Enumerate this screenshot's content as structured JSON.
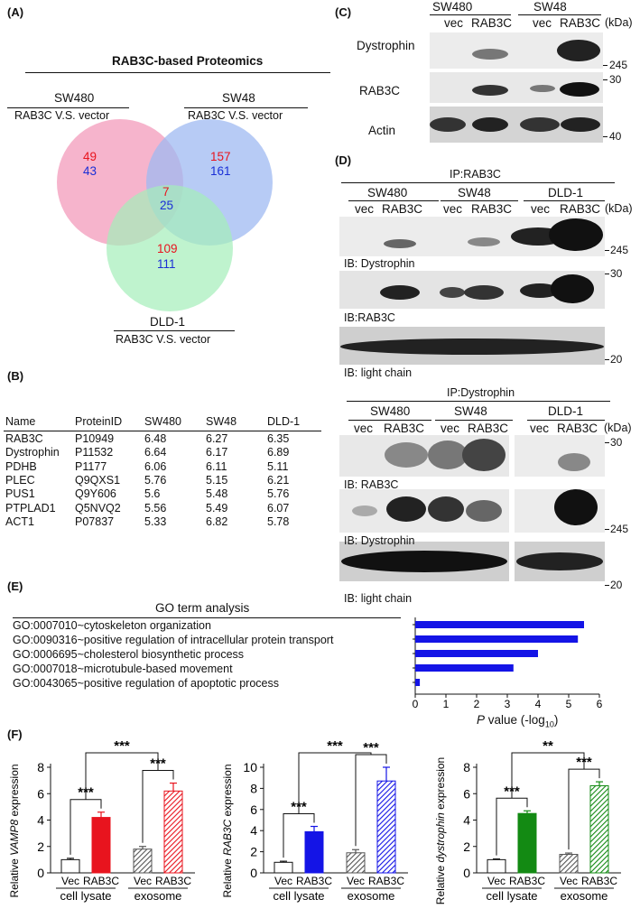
{
  "panelA": {
    "label": "(A)",
    "title": "RAB3C-based Proteomics",
    "sets": [
      {
        "name": "SW480",
        "sub": "RAB3C V.S. vector",
        "red": "49",
        "blue": "43"
      },
      {
        "name": "SW48",
        "sub": "RAB3C V.S. vector",
        "red": "157",
        "blue": "161"
      },
      {
        "name": "DLD-1",
        "sub": "RAB3C V.S. vector",
        "red": "109",
        "blue": "111"
      }
    ],
    "center": {
      "red": "7",
      "blue": "25"
    },
    "colors": {
      "sw480": "#f4a7c3",
      "sw48": "#9fb9f2",
      "dld1": "#a4eeb9",
      "red": "#e8141e",
      "blue": "#1a2fd6"
    }
  },
  "panelB": {
    "label": "(B)",
    "headers": [
      "Name",
      "ProteinID",
      "SW480",
      "SW48",
      "DLD-1"
    ],
    "rows": [
      [
        "RAB3C",
        "P10949",
        "6.48",
        "6.27",
        "6.35"
      ],
      [
        "Dystrophin",
        "P11532",
        "6.64",
        "6.17",
        "6.89"
      ],
      [
        "PDHB",
        "P1177",
        "6.06",
        "6.11",
        "5.11"
      ],
      [
        "PLEC",
        "Q9QXS1",
        "5.76",
        "5.15",
        "6.21"
      ],
      [
        "PUS1",
        "Q9Y606",
        "5.6",
        "5.48",
        "5.76"
      ],
      [
        "PTPLAD1",
        "Q5NVQ2",
        "5.56",
        "5.49",
        "6.07"
      ],
      [
        "ACT1",
        "P07837",
        "5.33",
        "6.82",
        "5.78"
      ]
    ]
  },
  "panelC": {
    "label": "(C)",
    "groups": [
      "SW480",
      "SW48"
    ],
    "lanes": [
      "vec",
      "RAB3C",
      "vec",
      "RAB3C"
    ],
    "kda": "(kDa)",
    "rows": [
      {
        "name": "Dystrophin",
        "marker": "245"
      },
      {
        "name": "RAB3C",
        "marker": "30"
      },
      {
        "name": "Actin",
        "marker": "40"
      }
    ]
  },
  "panelD": {
    "label": "(D)",
    "ip1": {
      "title": "IP:RAB3C",
      "groups": [
        "SW480",
        "SW48",
        "DLD-1"
      ],
      "lanes": [
        "vec",
        "RAB3C",
        "vec",
        "RAB3C",
        "vec",
        "RAB3C"
      ],
      "kda": "(kDa)",
      "blots": [
        {
          "caption": "IB: Dystrophin",
          "marker": "245"
        },
        {
          "caption": "IB:RAB3C",
          "marker": "30"
        },
        {
          "caption": "IB: light chain",
          "marker": "20"
        }
      ]
    },
    "ip2": {
      "title": "IP:Dystrophin",
      "groups": [
        "SW480",
        "SW48",
        "DLD-1"
      ],
      "lanes": [
        "vec",
        "RAB3C",
        "vec",
        "RAB3C",
        "vec",
        "RAB3C"
      ],
      "kda": "(kDa)",
      "blots": [
        {
          "caption": "IB: RAB3C",
          "marker": "30"
        },
        {
          "caption": "IB: Dystrophin",
          "marker": "245"
        },
        {
          "caption": "IB: light chain",
          "marker": "20"
        }
      ]
    }
  },
  "panelE": {
    "label": "(E)",
    "title": "GO term analysis",
    "xlabel_italic": "P",
    "xlabel_rest": " value (-log",
    "xlabel_sub": "10",
    "xlabel_end": ")"
  },
  "chart_data": [
    {
      "type": "bar",
      "title": "GO term analysis",
      "categories": [
        "GO:0007010~cytoskeleton organization",
        "GO:0090316~positive regulation of intracellular protein transport",
        "GO:0006695~cholesterol biosynthetic process",
        "GO:0007018~microtubule-based movement",
        "GO:0043065~positive regulation of apoptotic process"
      ],
      "values": [
        5.5,
        5.3,
        4.0,
        3.2,
        0.15
      ],
      "orientation": "horizontal",
      "xlabel": "P value (-log10)",
      "xlim": [
        0,
        6
      ],
      "xticks": [
        "0",
        "1",
        "2",
        "3",
        "4",
        "5",
        "6"
      ],
      "color": "#1414e6"
    },
    {
      "type": "bar",
      "ylabel_pre": "Relative ",
      "ylabel_gene": "VAMP8",
      "ylabel_post": " expression",
      "categories": [
        "Vec",
        "RAB3C",
        "Vec",
        "RAB3C"
      ],
      "groups": [
        "cell lysate",
        "exosome"
      ],
      "values": [
        1.0,
        4.2,
        1.8,
        6.2
      ],
      "errors": [
        0.1,
        0.4,
        0.2,
        0.6
      ],
      "ylim": [
        0,
        8
      ],
      "yticks": [
        "0",
        "2",
        "4",
        "6",
        "8"
      ],
      "fills": [
        "#ffffff",
        "#e8141e",
        "hatch-gray",
        "hatch-red"
      ],
      "significance": [
        {
          "label": "***",
          "pair": "Vec-RAB3C lysate"
        },
        {
          "label": "***",
          "pair": "Vec-RAB3C exosome"
        },
        {
          "label": "***",
          "pair": "lysate-exosome"
        }
      ]
    },
    {
      "type": "bar",
      "ylabel_pre": "Relative ",
      "ylabel_gene": "RAB3C",
      "ylabel_post": " expression",
      "categories": [
        "Vec",
        "RAB3C",
        "Vec",
        "RAB3C"
      ],
      "groups": [
        "cell lysate",
        "exosome"
      ],
      "values": [
        1.0,
        3.9,
        1.9,
        8.7
      ],
      "errors": [
        0.1,
        0.5,
        0.3,
        1.3
      ],
      "ylim": [
        0,
        10
      ],
      "yticks": [
        "0",
        "2",
        "4",
        "6",
        "8",
        "10"
      ],
      "fills": [
        "#ffffff",
        "#1414e6",
        "hatch-gray",
        "hatch-blue"
      ],
      "significance": [
        {
          "label": "***",
          "pair": "Vec-RAB3C lysate"
        },
        {
          "label": "***",
          "pair": "Vec-RAB3C exosome"
        },
        {
          "label": "***",
          "pair": "lysate-exosome"
        }
      ]
    },
    {
      "type": "bar",
      "ylabel_pre": "Relative ",
      "ylabel_gene": "dystrophin",
      "ylabel_post": " expression",
      "categories": [
        "Vec",
        "RAB3C",
        "Vec",
        "RAB3C"
      ],
      "groups": [
        "cell lysate",
        "exosome"
      ],
      "values": [
        1.0,
        4.5,
        1.4,
        6.6
      ],
      "errors": [
        0.05,
        0.2,
        0.1,
        0.3
      ],
      "ylim": [
        0,
        8
      ],
      "yticks": [
        "0",
        "2",
        "4",
        "6",
        "8"
      ],
      "fills": [
        "#ffffff",
        "#138a13",
        "hatch-gray",
        "hatch-green"
      ],
      "significance": [
        {
          "label": "***",
          "pair": "Vec-RAB3C lysate"
        },
        {
          "label": "***",
          "pair": "Vec-RAB3C exosome"
        },
        {
          "label": "**",
          "pair": "lysate-exosome"
        }
      ]
    }
  ],
  "panelF": {
    "label": "(F)"
  }
}
